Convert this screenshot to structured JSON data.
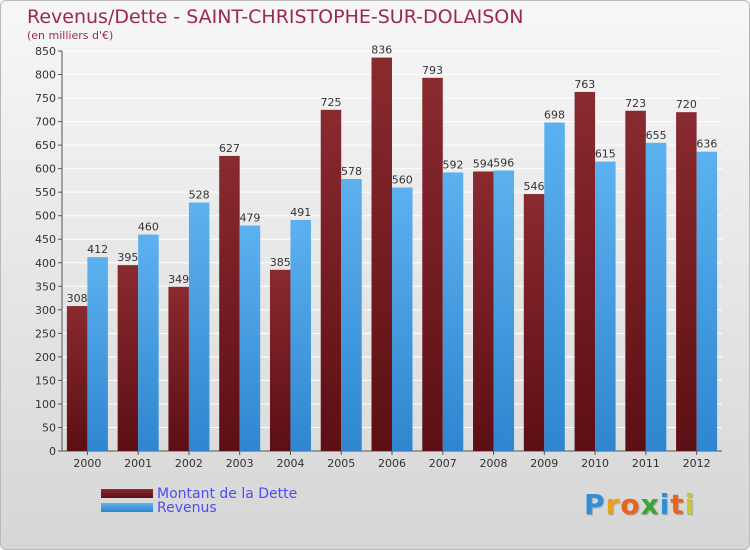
{
  "header": {
    "title": "Revenus/Dette - SAINT-CHRISTOPHE-SUR-DOLAISON",
    "subtitle": "(en milliers d'€)"
  },
  "legend": {
    "debt_label": "Montant de la Dette",
    "revenue_label": "Revenus"
  },
  "logo": {
    "letters": [
      "P",
      "r",
      "o",
      "x",
      "i",
      "t",
      "i"
    ],
    "colors": [
      "#2f8fd8",
      "#e8a21b",
      "#e8641b",
      "#3aa63a",
      "#2f8fd8",
      "#e8641b",
      "#c9c92a"
    ]
  },
  "colors": {
    "debt": "#7b1f25",
    "revenue": "#4da3e6"
  },
  "chart_data": {
    "type": "bar",
    "title": "Revenus/Dette - SAINT-CHRISTOPHE-SUR-DOLAISON",
    "subtitle": "(en milliers d'€)",
    "categories": [
      "2000",
      "2001",
      "2002",
      "2003",
      "2004",
      "2005",
      "2006",
      "2007",
      "2008",
      "2009",
      "2010",
      "2011",
      "2012"
    ],
    "series": [
      {
        "name": "Montant de la Dette",
        "values": [
          308,
          395,
          349,
          627,
          385,
          725,
          836,
          793,
          594,
          546,
          763,
          723,
          720
        ]
      },
      {
        "name": "Revenus",
        "values": [
          412,
          460,
          528,
          479,
          491,
          578,
          560,
          592,
          596,
          698,
          615,
          655,
          636
        ]
      }
    ],
    "ylim": [
      0,
      850
    ],
    "yticks": [
      0,
      50,
      100,
      150,
      200,
      250,
      300,
      350,
      400,
      450,
      500,
      550,
      600,
      650,
      700,
      750,
      800,
      850
    ],
    "grid": true,
    "legend_position": "bottom-left"
  }
}
